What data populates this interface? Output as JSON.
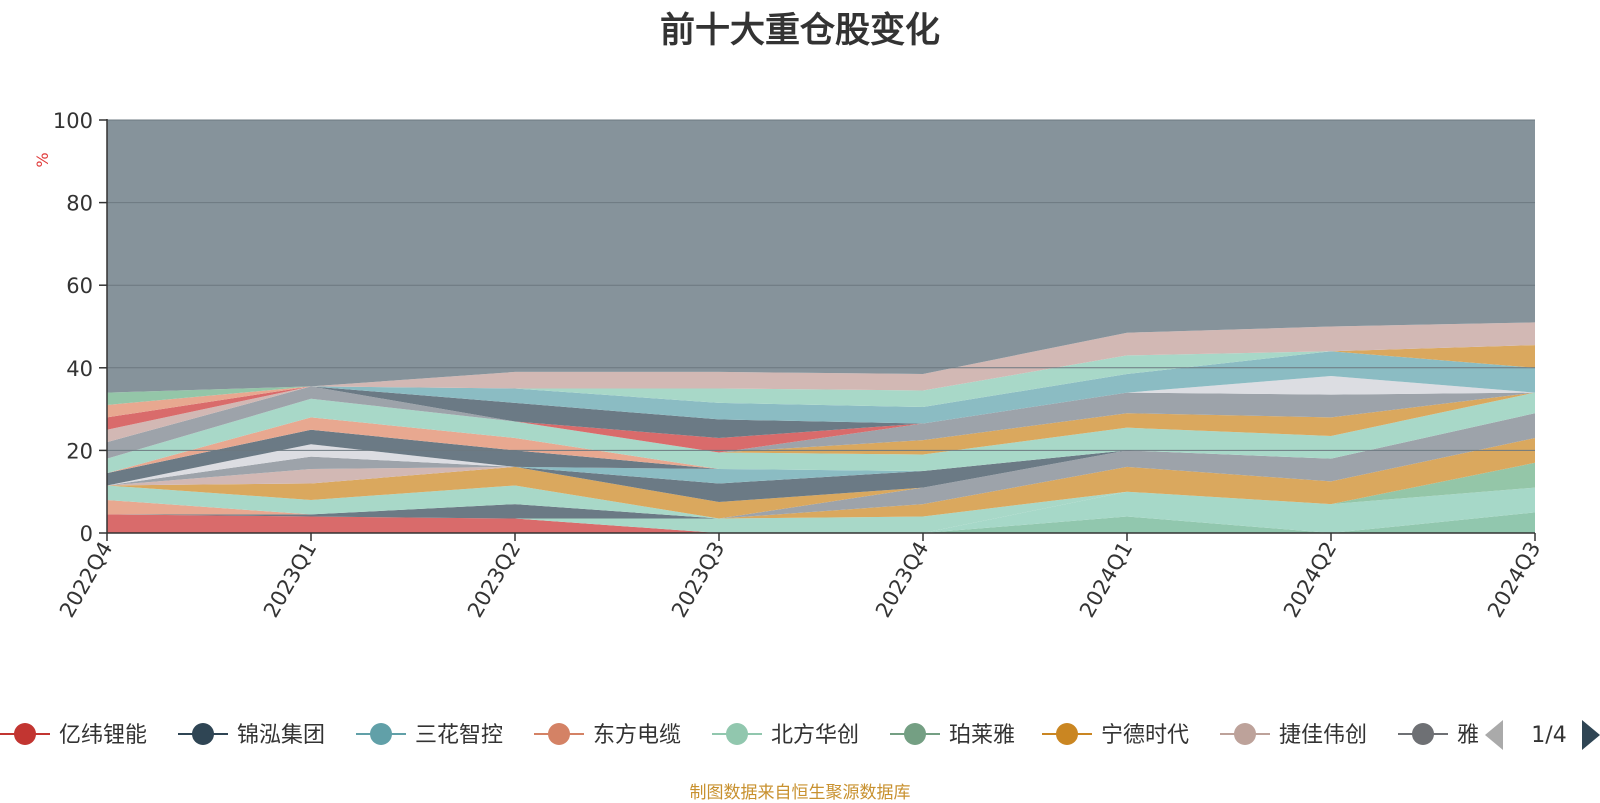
{
  "chart_data": {
    "type": "area",
    "stacked": true,
    "title": "前十大重仓股变化",
    "ylabel": "%",
    "ylim": [
      0,
      100
    ],
    "yticks": [
      0,
      20,
      40,
      60,
      80,
      100
    ],
    "categories": [
      "2022Q4",
      "2023Q1",
      "2023Q2",
      "2023Q3",
      "2023Q4",
      "2024Q1",
      "2024Q2",
      "2024Q3"
    ],
    "grid": true,
    "legend_position": "bottom",
    "legend_page": "1/4",
    "series": [
      {
        "name": "",
        "color": "#91c7ae",
        "values": [
          0,
          0,
          0,
          0,
          0,
          4,
          0,
          5
        ]
      },
      {
        "name": "",
        "color": "#a6d8c8",
        "values": [
          0,
          0,
          0,
          0,
          0,
          6,
          7,
          6
        ]
      },
      {
        "name": "",
        "color": "#94c6a8",
        "values": [
          0,
          0,
          0,
          0,
          0,
          0,
          0,
          6
        ]
      },
      {
        "name": "亿纬锂能",
        "color": "#d96b6b",
        "values": [
          4.5,
          4,
          3.5,
          0,
          0,
          0,
          0,
          0
        ]
      },
      {
        "name": "北方华创",
        "color": "#a8d8c8",
        "values": [
          0,
          0,
          0,
          3.5,
          4,
          0,
          0,
          0
        ]
      },
      {
        "name": "宁德时代",
        "color": "#daa85e",
        "values": [
          0,
          0,
          0,
          0,
          3,
          6,
          5.5,
          6
        ]
      },
      {
        "name": "雅",
        "color": "#9da3aa",
        "values": [
          0,
          0,
          0,
          0,
          4,
          4,
          5.5,
          6
        ]
      },
      {
        "name": "锦泓集团",
        "color": "#6b7a85",
        "values": [
          0,
          0.5,
          3.5,
          0,
          0,
          0,
          0,
          0
        ]
      },
      {
        "name": "东方电缆",
        "color": "#e8a890",
        "values": [
          3.5,
          0,
          0,
          0,
          0,
          0,
          0,
          0
        ]
      },
      {
        "name": "北方华创",
        "color": "#a8d8c8",
        "values": [
          3.5,
          3.5,
          4.5,
          0,
          0,
          0,
          0,
          0
        ]
      },
      {
        "name": "宁德时代",
        "color": "#daa85e",
        "values": [
          0,
          4,
          4.5,
          4,
          0,
          0,
          0,
          0
        ]
      },
      {
        "name": "锦泓集团",
        "color": "#6b7a85",
        "values": [
          0,
          0,
          0,
          4.5,
          4,
          0,
          0,
          0
        ]
      },
      {
        "name": "捷佳伟创",
        "color": "#d2b8b4",
        "values": [
          0,
          3.5,
          0,
          0,
          0,
          0,
          0,
          0
        ]
      },
      {
        "name": "雅",
        "color": "#9da3aa",
        "values": [
          0,
          3,
          0,
          0,
          0,
          0,
          0,
          0
        ]
      },
      {
        "name": "",
        "color": "#dcdde2",
        "values": [
          0,
          3,
          0,
          0,
          0,
          0,
          0,
          0
        ]
      },
      {
        "name": "三花智控",
        "color": "#8bbcc3",
        "values": [
          0,
          0,
          0,
          3.5,
          0,
          0,
          0,
          0
        ]
      },
      {
        "name": "锦泓集团",
        "color": "#6b7a85",
        "values": [
          3,
          3.5,
          4,
          0,
          0,
          0,
          0,
          0
        ]
      },
      {
        "name": "东方电缆",
        "color": "#e8a890",
        "values": [
          0,
          3,
          3,
          0,
          0,
          0,
          0,
          0
        ]
      },
      {
        "name": "北方华创",
        "color": "#a8d8c8",
        "values": [
          3.5,
          4.5,
          4,
          4,
          4,
          5.5,
          5.5,
          5
        ]
      },
      {
        "name": "宁德时代",
        "color": "#daa85e",
        "values": [
          0,
          0,
          0,
          0,
          3.5,
          3.5,
          4.5,
          0
        ]
      },
      {
        "name": "雅",
        "color": "#9da3aa",
        "values": [
          4,
          3,
          0,
          0,
          4,
          5,
          5.5,
          0
        ]
      },
      {
        "name": "捷佳伟创",
        "color": "#d2b8b4",
        "values": [
          3,
          0,
          0,
          0,
          0,
          0,
          0,
          0
        ]
      },
      {
        "name": "亿纬锂能",
        "color": "#d96b6b",
        "values": [
          3,
          0,
          0,
          3.5,
          0,
          0,
          0,
          0
        ]
      },
      {
        "name": "锦泓集团",
        "color": "#6b7a85",
        "values": [
          0,
          0,
          4.5,
          4.5,
          0,
          0,
          0,
          0
        ]
      },
      {
        "name": "",
        "color": "#dcdde2",
        "values": [
          0,
          0,
          0,
          0,
          0,
          0,
          4.5,
          0
        ]
      },
      {
        "name": "三花智控",
        "color": "#8bbcc3",
        "values": [
          0,
          0,
          3.5,
          4,
          4,
          4.5,
          6,
          6
        ]
      },
      {
        "name": "东方电缆",
        "color": "#e8a890",
        "values": [
          3,
          0,
          0,
          0,
          0,
          0,
          0,
          0
        ]
      },
      {
        "name": "北方华创",
        "color": "#a8d8c8",
        "values": [
          0,
          0,
          0,
          3.5,
          4,
          4.5,
          0,
          0
        ]
      },
      {
        "name": "宁德时代",
        "color": "#daa85e",
        "values": [
          0,
          0,
          0,
          0,
          0,
          0,
          0,
          5.5
        ]
      },
      {
        "name": "珀莱雅",
        "color": "#94c6a8",
        "values": [
          3,
          0,
          0,
          0,
          0,
          0,
          0,
          0
        ]
      },
      {
        "name": "捷佳伟创",
        "color": "#d2b8b4",
        "values": [
          0,
          0,
          4,
          4,
          4,
          5.5,
          6,
          5.5
        ]
      }
    ],
    "remainder_color": "#86939b"
  },
  "legend": {
    "items": [
      {
        "name": "亿纬锂能",
        "color": "#c23531"
      },
      {
        "name": "锦泓集团",
        "color": "#2f4554"
      },
      {
        "name": "三花智控",
        "color": "#61a0a8"
      },
      {
        "name": "东方电缆",
        "color": "#d48265"
      },
      {
        "name": "北方华创",
        "color": "#91c7ae"
      },
      {
        "name": "珀莱雅",
        "color": "#749f83"
      },
      {
        "name": "宁德时代",
        "color": "#ca8622"
      },
      {
        "name": "捷佳伟创",
        "color": "#bda29a"
      },
      {
        "name": "雅",
        "color": "#6e7074"
      }
    ],
    "page": "1/4",
    "prev_icon": "triangle-left-icon",
    "next_icon": "triangle-right-icon"
  },
  "source_note": "制图数据来自恒生聚源数据库"
}
